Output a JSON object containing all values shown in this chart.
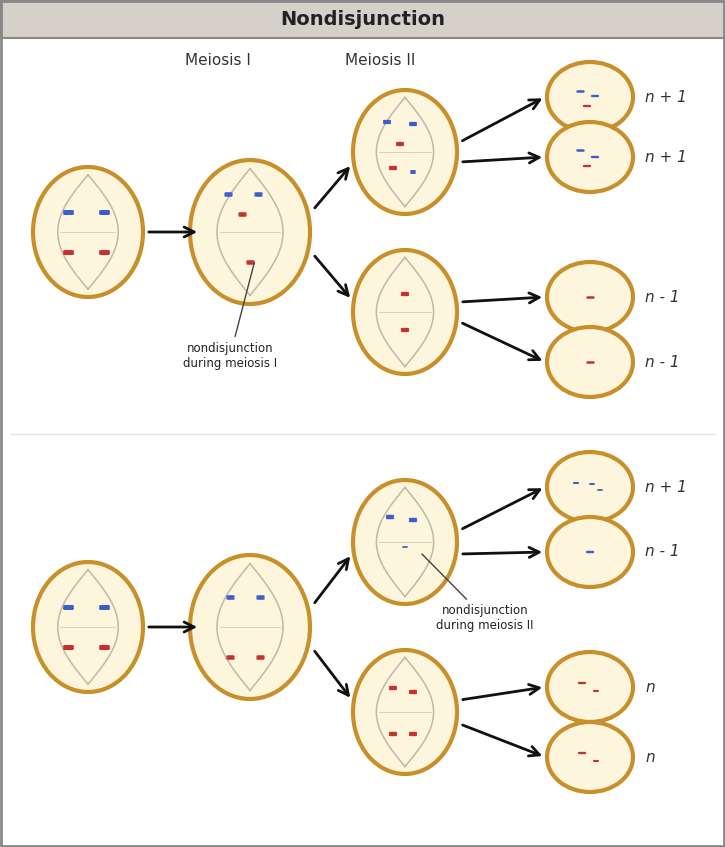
{
  "title": "Nondisjunction",
  "title_bg": "#d5d0c8",
  "bg_color": "#f0efed",
  "white_bg": "#ffffff",
  "cell_fill": "#fdf5dc",
  "cell_edge": "#c8902a",
  "cell_edge_width": 3.0,
  "spindle_color": "#c0b8a8",
  "blue_chrom": "#3a5fc8",
  "red_chrom": "#c83030",
  "label_meiosis1": "Meiosis I",
  "label_meiosis2": "Meiosis II",
  "arrow_color": "#111111",
  "text_color": "#222222",
  "annot1": "nondisjunction\nduring meiosis I",
  "annot2": "nondisjunction\nduring meiosis II",
  "labels_top": [
    "n + 1",
    "n + 1",
    "n - 1",
    "n - 1"
  ],
  "labels_bottom": [
    "n + 1",
    "n - 1",
    "n",
    "n"
  ],
  "border_color": "#888888"
}
